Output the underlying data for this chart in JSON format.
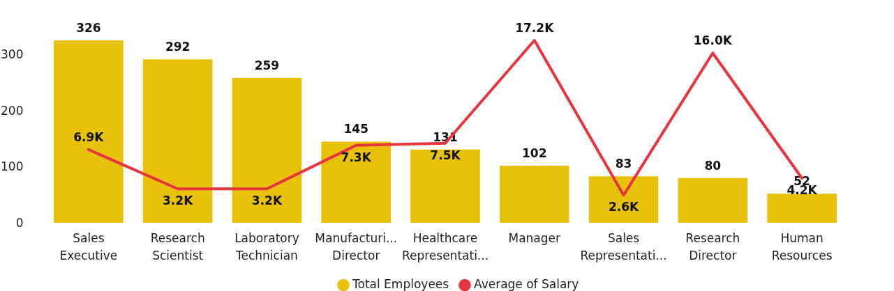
{
  "chart_data": {
    "type": "bar",
    "categories": [
      "Sales Executive",
      "Research Scientist",
      "Laboratory Technician",
      "Manufacturi... Director",
      "Healthcare Representati...",
      "Manager",
      "Sales Representati...",
      "Research Director",
      "Human Resources"
    ],
    "series": [
      {
        "name": "Total Employees",
        "color": "#e8c10a",
        "values": [
          326,
          292,
          259,
          145,
          131,
          102,
          83,
          80,
          52
        ],
        "data_labels": true
      },
      {
        "name": "Average of Salary",
        "type": "line",
        "axis": "y2",
        "color": "#e8343f",
        "values": [
          6900,
          3200,
          3200,
          7300,
          7500,
          17200,
          2600,
          16000,
          4200
        ],
        "value_labels": [
          "6.9K",
          "3.2K",
          "3.2K",
          "7.3K",
          "7.5K",
          "17.2K",
          "2.6K",
          "16.0K",
          "4.2K"
        ]
      }
    ],
    "ylim": [
      0,
      326
    ],
    "yticks": [
      0,
      100,
      200,
      300
    ],
    "grid": false,
    "legend": "bottom",
    "marker": "none"
  }
}
